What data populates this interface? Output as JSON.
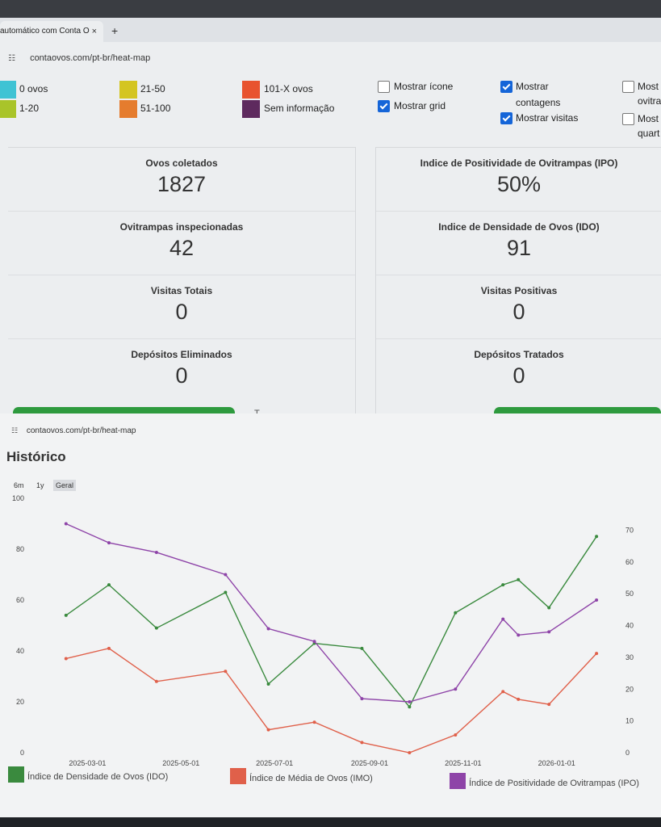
{
  "browser": {
    "tab_title": "automático com Conta O",
    "tab_close": "×",
    "new_tab": "+",
    "url": "contaovos.com/pt-br/heat-map"
  },
  "legend": {
    "items": [
      {
        "label": "0 ovos",
        "color": "#3fc3d4"
      },
      {
        "label": "1-20",
        "color": "#a9c42a"
      },
      {
        "label": "21-50",
        "color": "#d4c521"
      },
      {
        "label": "51-100",
        "color": "#e57c2e"
      },
      {
        "label": "101-X ovos",
        "color": "#e8532f"
      },
      {
        "label": "Sem informação",
        "color": "#5e2a5e"
      }
    ],
    "options": [
      {
        "label": "Mostrar ícone",
        "checked": false
      },
      {
        "label": "Mostrar grid",
        "checked": true
      },
      {
        "label_line1": "Mostrar",
        "label_line2": "contagens",
        "checked": true
      },
      {
        "label": "Mostrar visitas",
        "checked": true
      },
      {
        "label_line1": "Most",
        "label_line2": "ovitra",
        "checked": false
      },
      {
        "label_line1": "Most",
        "label_line2": "quart",
        "checked": false
      }
    ]
  },
  "stats": {
    "left": [
      {
        "label": "Ovos coletados",
        "value": "1827"
      },
      {
        "label": "Ovitrampas inspecionadas",
        "value": "42"
      },
      {
        "label": "Visitas Totais",
        "value": "0"
      },
      {
        "label": "Depósitos Eliminados",
        "value": "0"
      }
    ],
    "right": [
      {
        "label": "Indice de Positividade de Ovitrampas (IPO)",
        "value": "50%"
      },
      {
        "label": "Indice de Densidade de Ovos (IDO)",
        "value": "91"
      },
      {
        "label": "Visitas Positivas",
        "value": "0"
      },
      {
        "label": "Depósitos Tratados",
        "value": "0"
      }
    ],
    "cut_text": "T                              "
  },
  "history": {
    "url": "contaovos.com/pt-br/heat-map",
    "title": "Histórico",
    "ranges": [
      "6m",
      "1y",
      "Geral"
    ],
    "active_range": "Geral"
  },
  "chart_data": {
    "type": "line",
    "x_ticks": [
      "2025-03-01",
      "2025-05-01",
      "2025-07-01",
      "2025-09-01",
      "2025-11-01",
      "2026-01-01"
    ],
    "y_left_ticks": [
      "0",
      "20",
      "40",
      "60",
      "80",
      "100"
    ],
    "y_right_ticks": [
      "0",
      "10",
      "20",
      "30",
      "40",
      "50",
      "60",
      "70"
    ],
    "ylim_left": [
      0,
      100
    ],
    "ylim_right": [
      0,
      80
    ],
    "grid": false,
    "legend_position": "bottom",
    "series": [
      {
        "name": "Índice de Densidade de Ovos (IDO)",
        "color": "#3a8a3e",
        "axis": "left",
        "points": [
          [
            "2025-02-15",
            54
          ],
          [
            "2025-03-15",
            66
          ],
          [
            "2025-04-15",
            49
          ],
          [
            "2025-05-30",
            63
          ],
          [
            "2025-06-27",
            27
          ],
          [
            "2025-07-27",
            43
          ],
          [
            "2025-08-27",
            41
          ],
          [
            "2025-09-27",
            18
          ],
          [
            "2025-10-27",
            55
          ],
          [
            "2025-11-27",
            66
          ],
          [
            "2025-12-07",
            68
          ],
          [
            "2025-12-27",
            57
          ],
          [
            "2026-01-27",
            85
          ]
        ]
      },
      {
        "name": "Índice de Média de Ovos (IMO)",
        "color": "#e0604a",
        "axis": "left",
        "points": [
          [
            "2025-02-15",
            37
          ],
          [
            "2025-03-15",
            41
          ],
          [
            "2025-04-15",
            28
          ],
          [
            "2025-05-30",
            32
          ],
          [
            "2025-06-27",
            9
          ],
          [
            "2025-07-27",
            12
          ],
          [
            "2025-08-27",
            4
          ],
          [
            "2025-09-27",
            0
          ],
          [
            "2025-10-27",
            7
          ],
          [
            "2025-11-27",
            24
          ],
          [
            "2025-12-07",
            21
          ],
          [
            "2025-12-27",
            19
          ],
          [
            "2026-01-27",
            39
          ]
        ]
      },
      {
        "name": "Índice de Positividade de Ovitrampas (IPO)",
        "color": "#8e44a8",
        "axis": "right",
        "points": [
          [
            "2025-02-15",
            72
          ],
          [
            "2025-03-15",
            66
          ],
          [
            "2025-04-15",
            63
          ],
          [
            "2025-05-30",
            56
          ],
          [
            "2025-06-27",
            39
          ],
          [
            "2025-07-27",
            35
          ],
          [
            "2025-08-27",
            17
          ],
          [
            "2025-09-27",
            16
          ],
          [
            "2025-10-27",
            20
          ],
          [
            "2025-11-27",
            42
          ],
          [
            "2025-12-07",
            37
          ],
          [
            "2025-12-27",
            38
          ],
          [
            "2026-01-27",
            48
          ]
        ]
      }
    ]
  }
}
